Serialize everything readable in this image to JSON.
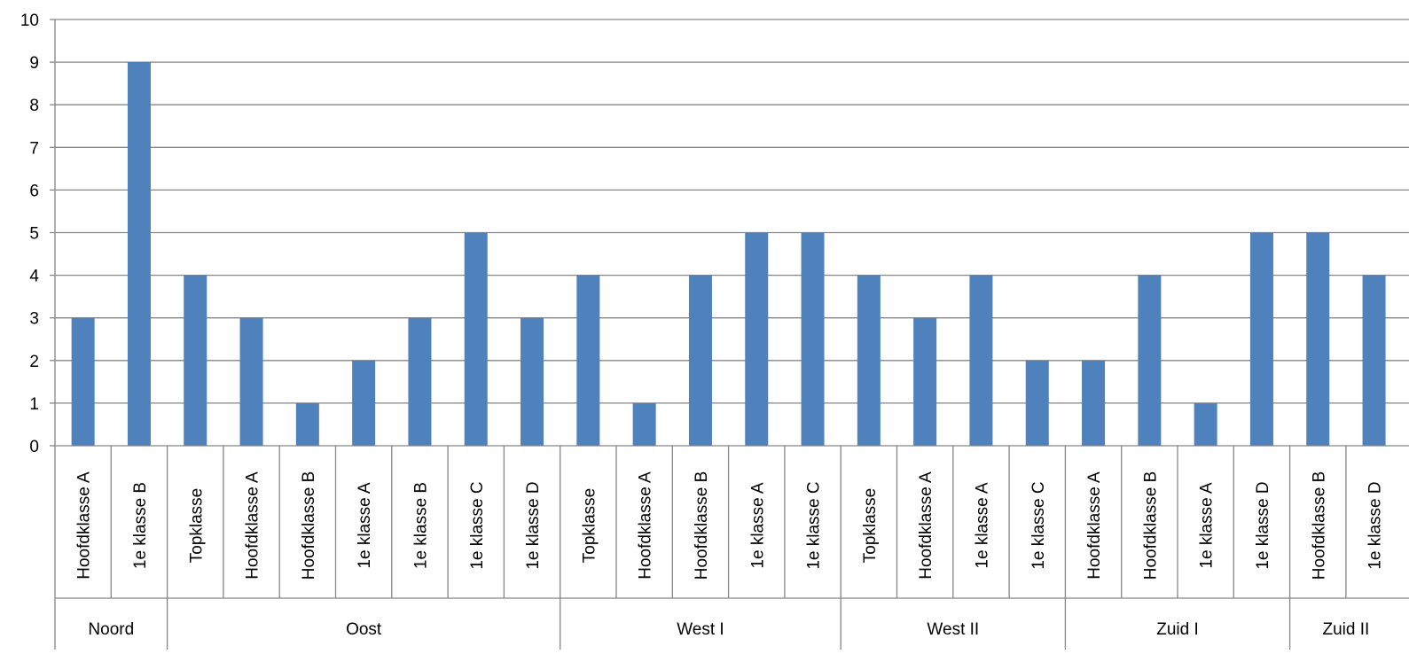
{
  "chart_data": {
    "type": "bar",
    "title": "",
    "xlabel": "",
    "ylabel": "",
    "ylim": [
      0,
      10
    ],
    "yticks": [
      0,
      1,
      2,
      3,
      4,
      5,
      6,
      7,
      8,
      9,
      10
    ],
    "grid": true,
    "legend": "none",
    "bar_color": "#4F81BD",
    "groups": [
      {
        "name": "Noord",
        "categories": [
          "Hoofdklasse A",
          "1e klasse B"
        ],
        "values": [
          3,
          9
        ]
      },
      {
        "name": "Oost",
        "categories": [
          "Topklasse",
          "Hoofdklasse A",
          "Hoofdklasse B",
          "1e klasse A",
          "1e klasse B",
          "1e klasse C",
          "1e klasse D"
        ],
        "values": [
          4,
          3,
          1,
          2,
          3,
          5,
          3
        ]
      },
      {
        "name": "West I",
        "categories": [
          "Topklasse",
          "Hoofdklasse A",
          "Hoofdklasse B",
          "1e klasse A",
          "1e klasse C"
        ],
        "values": [
          4,
          1,
          4,
          5,
          5
        ]
      },
      {
        "name": "West II",
        "categories": [
          "Topklasse",
          "Hoofdklasse A",
          "1e klasse A",
          "1e klasse C"
        ],
        "values": [
          4,
          3,
          4,
          2
        ]
      },
      {
        "name": "Zuid I",
        "categories": [
          "Hoofdklasse A",
          "Hoofdklasse B",
          "1e klasse A",
          "1e klasse D"
        ],
        "values": [
          2,
          4,
          1,
          5
        ]
      },
      {
        "name": "Zuid II",
        "categories": [
          "Hoofdklasse B",
          "1e klasse D"
        ],
        "values": [
          5,
          4
        ]
      }
    ]
  }
}
